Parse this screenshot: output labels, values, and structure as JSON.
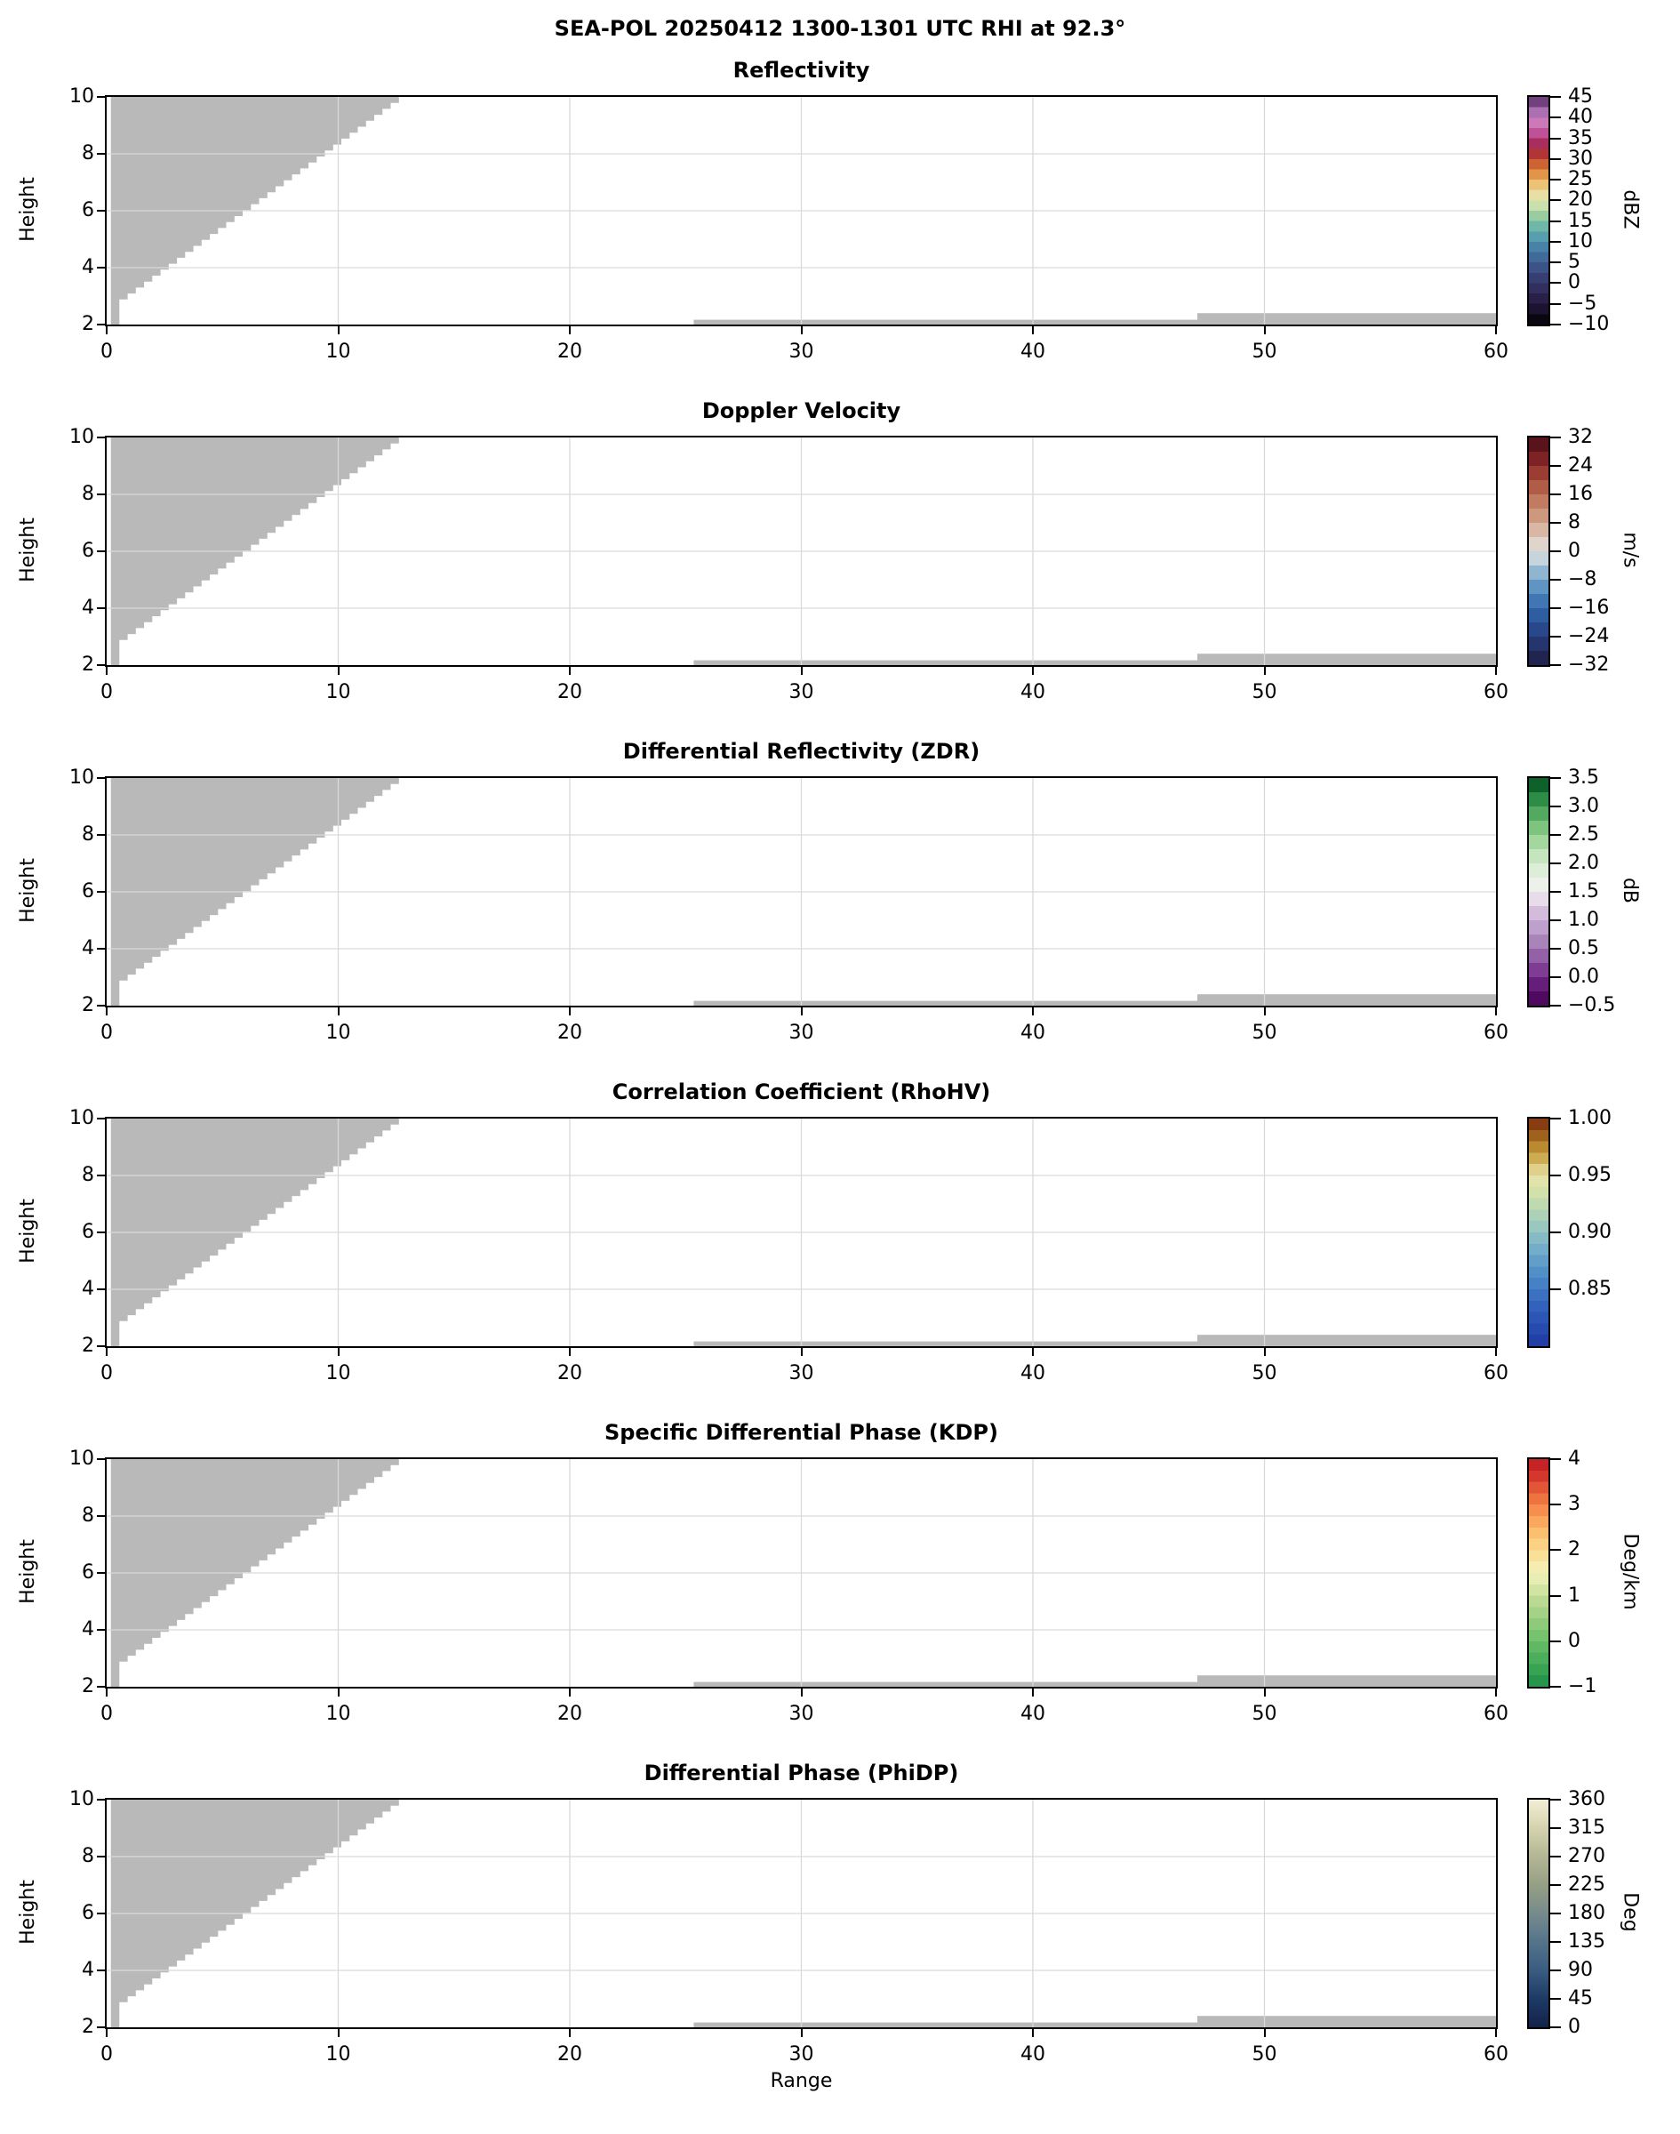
{
  "figure": {
    "suptitle": "SEA-POL 20250412 1300-1301 UTC RHI at 92.3°"
  },
  "chart_data": {
    "type": "heatmap",
    "title": "SEA-POL 20250412 1300-1301 UTC RHI at 92.3°",
    "note": "Six-panel dual-polarization radar RHI cross-section. No precipitation echo is present in any panel; the only visible content is the gray no-data mask (stair-stepped beam-geometry wedge in the upper-left and thin low-level strips at far range).",
    "xlabel": "Range",
    "ylabel": "Height",
    "xlim": [
      0,
      60
    ],
    "ylim": [
      2,
      10
    ],
    "x_ticks": [
      0,
      10,
      20,
      30,
      40,
      50,
      60
    ],
    "y_ticks": [
      2,
      4,
      6,
      8,
      10
    ],
    "grid_x": [
      10,
      20,
      30,
      40,
      50
    ],
    "grid_y": [
      4,
      6,
      8
    ],
    "grid_color": "#d9d9d9",
    "mask": {
      "color": "#b9b9b9",
      "wedge": {
        "left_x": 0.18,
        "col_right_x": 0.55,
        "base_h": 2.0,
        "col_top_h": 2.88,
        "top_h": 10.0,
        "top_right_x": 12.62,
        "steps": 34
      },
      "strips": [
        {
          "x0": 25.35,
          "x1": 47.1,
          "h0": 2.0,
          "h1": 2.17
        },
        {
          "x0": 47.1,
          "x1": 60.0,
          "h0": 2.0,
          "h1": 2.4
        }
      ]
    },
    "panels": [
      {
        "id": "reflectivity",
        "title": "Reflectivity",
        "units": "dBZ",
        "cmin": -10,
        "cmax": 45,
        "bands": 22,
        "ticks": [
          {
            "v": -10,
            "label": "−10"
          },
          {
            "v": -5,
            "label": "−5"
          },
          {
            "v": 0,
            "label": "0"
          },
          {
            "v": 5,
            "label": "5"
          },
          {
            "v": 10,
            "label": "10"
          },
          {
            "v": 15,
            "label": "15"
          },
          {
            "v": 20,
            "label": "20"
          },
          {
            "v": 25,
            "label": "25"
          },
          {
            "v": 30,
            "label": "30"
          },
          {
            "v": 35,
            "label": "35"
          },
          {
            "v": 40,
            "label": "40"
          },
          {
            "v": 45,
            "label": "45"
          }
        ],
        "stops": [
          "#000000",
          "#130d22",
          "#23193b",
          "#2e2752",
          "#353567",
          "#39477d",
          "#3d5e91",
          "#4376a1",
          "#4e91ad",
          "#5fabaf",
          "#7fc2a2",
          "#b2d69f",
          "#e2eab9",
          "#eed592",
          "#e8ae5a",
          "#d97b35",
          "#c04a2e",
          "#a22040",
          "#b13a7d",
          "#cc6aae",
          "#c987c4",
          "#8f56a0",
          "#512a5e"
        ]
      },
      {
        "id": "doppler-velocity",
        "title": "Doppler Velocity",
        "units": "m/s",
        "cmin": -32,
        "cmax": 32,
        "bands": 16,
        "ticks": [
          {
            "v": -32,
            "label": "−32"
          },
          {
            "v": -24,
            "label": "−24"
          },
          {
            "v": -16,
            "label": "−16"
          },
          {
            "v": -8,
            "label": "−8"
          },
          {
            "v": 0,
            "label": "0"
          },
          {
            "v": 8,
            "label": "8"
          },
          {
            "v": 16,
            "label": "16"
          },
          {
            "v": 24,
            "label": "24"
          },
          {
            "v": 32,
            "label": "32"
          }
        ],
        "stops": [
          "#1d1c3e",
          "#232c5e",
          "#273d7e",
          "#2b5198",
          "#3268ab",
          "#4c84bb",
          "#74a3ca",
          "#a9c6d6",
          "#e2e2e1",
          "#ddc7b8",
          "#d2a78f",
          "#c68a6e",
          "#b96c52",
          "#a84c3b",
          "#8f2d2b",
          "#6b181e",
          "#451015"
        ]
      },
      {
        "id": "zdr",
        "title": "Differential Reflectivity (ZDR)",
        "units": "dB",
        "cmin": -0.5,
        "cmax": 3.5,
        "bands": 16,
        "ticks": [
          {
            "v": -0.5,
            "label": "−0.5"
          },
          {
            "v": 0,
            "label": "0.0"
          },
          {
            "v": 0.5,
            "label": "0.5"
          },
          {
            "v": 1,
            "label": "1.0"
          },
          {
            "v": 1.5,
            "label": "1.5"
          },
          {
            "v": 2,
            "label": "2.0"
          },
          {
            "v": 2.5,
            "label": "2.5"
          },
          {
            "v": 3,
            "label": "3.0"
          },
          {
            "v": 3.5,
            "label": "3.5"
          }
        ],
        "stops": [
          "#40004b",
          "#5a1370",
          "#722985",
          "#8a4f9e",
          "#9c74ae",
          "#b393c4",
          "#c9add5",
          "#ddc8e3",
          "#f2f0f2",
          "#e6f1e2",
          "#d2ebcd",
          "#b5dfae",
          "#93cf8e",
          "#68b86e",
          "#3d9a51",
          "#1d7d3b",
          "#00441b"
        ]
      },
      {
        "id": "rhohv",
        "title": "Correlation Coefficient (RhoHV)",
        "units": "",
        "cmin": 0.8,
        "cmax": 1.0,
        "bands": 20,
        "ticks": [
          {
            "v": 0.85,
            "label": "0.85"
          },
          {
            "v": 0.9,
            "label": "0.90"
          },
          {
            "v": 0.95,
            "label": "0.95"
          },
          {
            "v": 1.0,
            "label": "1.00"
          }
        ],
        "stops": [
          "#1e3aa0",
          "#2547ac",
          "#2c55b6",
          "#3565bd",
          "#3f79c2",
          "#4d8cc7",
          "#619fc9",
          "#78b1c9",
          "#90c1c3",
          "#a8cfba",
          "#c0dab0",
          "#d7e2a9",
          "#e7e3ab",
          "#d2b55b",
          "#b98a2f",
          "#97571a",
          "#7c2a0d"
        ]
      },
      {
        "id": "kdp",
        "title": "Specific Differential Phase (KDP)",
        "units": "Deg/km",
        "cmin": -1,
        "cmax": 4,
        "bands": 20,
        "ticks": [
          {
            "v": -1,
            "label": "−1"
          },
          {
            "v": 0,
            "label": "0"
          },
          {
            "v": 1,
            "label": "1"
          },
          {
            "v": 2,
            "label": "2"
          },
          {
            "v": 3,
            "label": "3"
          },
          {
            "v": 4,
            "label": "4"
          }
        ],
        "stops": [
          "#1d9048",
          "#32a051",
          "#4aae5b",
          "#66bb66",
          "#83c674",
          "#9fd184",
          "#bada93",
          "#d8e7a5",
          "#f1f1bd",
          "#f8e49e",
          "#fbd283",
          "#fcb96a",
          "#f89c55",
          "#f07a44",
          "#e25537",
          "#d0312b",
          "#c01a25"
        ]
      },
      {
        "id": "phidp",
        "title": "Differential Phase (PhiDP)",
        "units": "Deg",
        "cmin": 0,
        "cmax": 360,
        "bands": 0,
        "ticks": [
          {
            "v": 0,
            "label": "0"
          },
          {
            "v": 45,
            "label": "45"
          },
          {
            "v": 90,
            "label": "90"
          },
          {
            "v": 135,
            "label": "135"
          },
          {
            "v": 180,
            "label": "180"
          },
          {
            "v": 225,
            "label": "225"
          },
          {
            "v": 270,
            "label": "270"
          },
          {
            "v": 315,
            "label": "315"
          },
          {
            "v": 360,
            "label": "360"
          }
        ],
        "stops": [
          "#14224a",
          "#1d3a66",
          "#3a5c80",
          "#54748b",
          "#778b8c",
          "#959f85",
          "#b3b694",
          "#d5d3ae",
          "#f2eed6"
        ]
      }
    ]
  }
}
